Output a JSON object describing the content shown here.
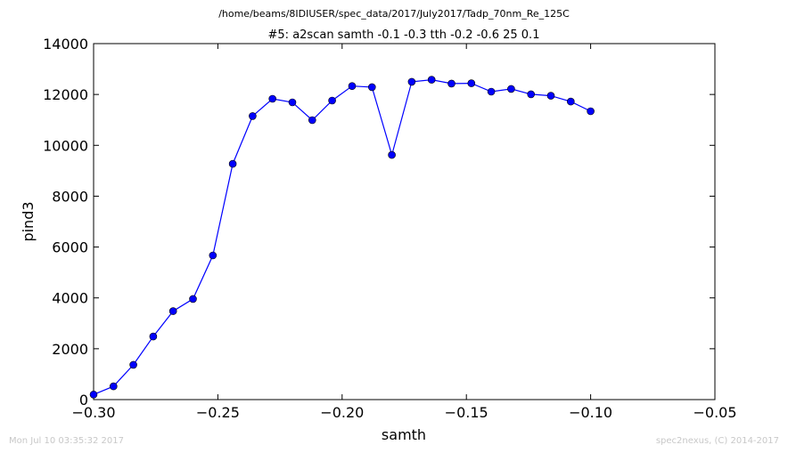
{
  "figure": {
    "suptitle": "/home/beams/8IDIUSER/spec_data/2017/July2017/Tadp_70nm_Re_125C",
    "footer_left": "Mon Jul 10 03:35:32 2017",
    "footer_right": "spec2nexus, (C) 2014-2017"
  },
  "chart_data": {
    "type": "line",
    "title": "#5: a2scan  samth -0.1 -0.3  tth -0.2 -0.6  25 0.1",
    "xlabel": "samth",
    "ylabel": "pind3",
    "xlim": [
      -0.3,
      -0.05
    ],
    "ylim": [
      0,
      14000
    ],
    "xticks": [
      -0.3,
      -0.25,
      -0.2,
      -0.15,
      -0.1,
      -0.05
    ],
    "xtick_labels": [
      "−0.30",
      "−0.25",
      "−0.20",
      "−0.15",
      "−0.10",
      "−0.05"
    ],
    "yticks": [
      0,
      2000,
      4000,
      6000,
      8000,
      10000,
      12000,
      14000
    ],
    "ytick_labels": [
      "0",
      "2000",
      "4000",
      "6000",
      "8000",
      "10000",
      "12000",
      "14000"
    ],
    "grid": false,
    "series": [
      {
        "color": "#0000ff",
        "marker": "circle",
        "x": [
          -0.3,
          -0.292,
          -0.284,
          -0.276,
          -0.268,
          -0.26,
          -0.252,
          -0.244,
          -0.236,
          -0.228,
          -0.22,
          -0.212,
          -0.204,
          -0.196,
          -0.188,
          -0.18,
          -0.172,
          -0.164,
          -0.156,
          -0.148,
          -0.14,
          -0.132,
          -0.124,
          -0.116,
          -0.108,
          -0.1
        ],
        "y": [
          200,
          520,
          1370,
          2480,
          3480,
          3960,
          5670,
          9270,
          11150,
          11830,
          11690,
          10990,
          11760,
          12330,
          12290,
          9620,
          12500,
          12580,
          12430,
          12440,
          12110,
          12220,
          12010,
          11950,
          11720,
          11340
        ]
      }
    ]
  }
}
